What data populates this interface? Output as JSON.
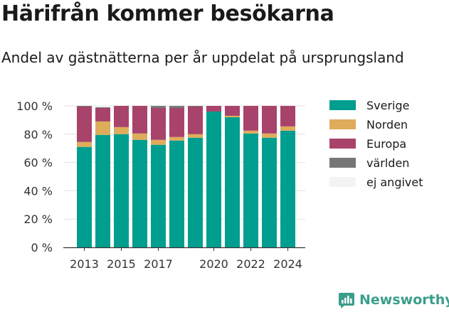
{
  "header": {
    "title": "Härifrån kommer besökarna",
    "subtitle": "Andel av gästnätterna per år uppdelat på ursprungsland"
  },
  "brand": {
    "name": "Newsworthy",
    "color": "#3a9e8c"
  },
  "chart_data": {
    "type": "bar",
    "stacked": true,
    "categories": [
      "2013",
      "2014",
      "2015",
      "2016",
      "2017",
      "2018",
      "2019",
      "2020",
      "2021",
      "2022",
      "2023",
      "2024"
    ],
    "x_tick_labels": [
      "2013",
      "2015",
      "2017",
      "2020",
      "2022",
      "2024"
    ],
    "y_ticks": [
      0,
      20,
      40,
      60,
      80,
      100
    ],
    "y_tick_labels": [
      "0 %",
      "20 %",
      "40 %",
      "60 %",
      "80 %",
      "100 %"
    ],
    "ylim": [
      0,
      100
    ],
    "grid": true,
    "legend_position": "right",
    "series": [
      {
        "name": "Sverige",
        "color": "#009e8e",
        "values": [
          71,
          79.5,
          80,
          76,
          72.5,
          75.5,
          77.5,
          96,
          92,
          80.5,
          77.5,
          82.5
        ]
      },
      {
        "name": "Norden",
        "color": "#deac5b",
        "values": [
          3.5,
          9.5,
          5,
          4.5,
          3.5,
          2.5,
          2.5,
          0,
          1,
          2,
          3,
          3
        ]
      },
      {
        "name": "Europa",
        "color": "#a8436b",
        "values": [
          25,
          9.5,
          15,
          19.5,
          22.5,
          20.5,
          19.5,
          4,
          7,
          17.5,
          19.5,
          14.5
        ]
      },
      {
        "name": "världen",
        "color": "#777777",
        "values": [
          0.5,
          0.5,
          0,
          0,
          1.5,
          1.5,
          0.5,
          0,
          0,
          0,
          0,
          0
        ]
      },
      {
        "name": "ej angivet",
        "color": "#f3f3f3",
        "values": [
          0,
          0.5,
          0,
          0,
          0,
          0,
          0,
          0,
          0,
          0,
          0,
          0
        ]
      }
    ]
  }
}
